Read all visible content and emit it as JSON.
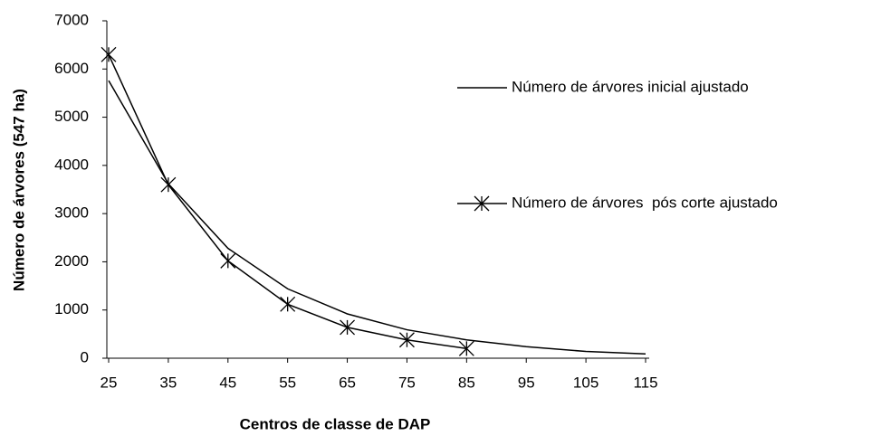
{
  "chart_data": {
    "type": "line",
    "x_label": "Centros de classe de DAP",
    "y_label": "Número de árvores (547 ha)",
    "categories": [
      "25",
      "35",
      "45",
      "55",
      "65",
      "75",
      "85",
      "95",
      "105",
      "115"
    ],
    "series": [
      {
        "name": "Número de árvores inicial ajustado",
        "color": "#000000",
        "marker": "none",
        "values": [
          5760,
          3620,
          2280,
          1440,
          920,
          590,
          380,
          240,
          140,
          90
        ]
      },
      {
        "name": "Número de árvores  pós corte ajustado",
        "color": "#000000",
        "marker": "star",
        "values": [
          6300,
          3600,
          2020,
          1120,
          640,
          380,
          200,
          null,
          null,
          null
        ]
      }
    ],
    "ylim": [
      0,
      7000
    ],
    "yticks": [
      0,
      1000,
      2000,
      3000,
      4000,
      5000,
      6000,
      7000
    ],
    "grid": false,
    "legend": "right"
  }
}
